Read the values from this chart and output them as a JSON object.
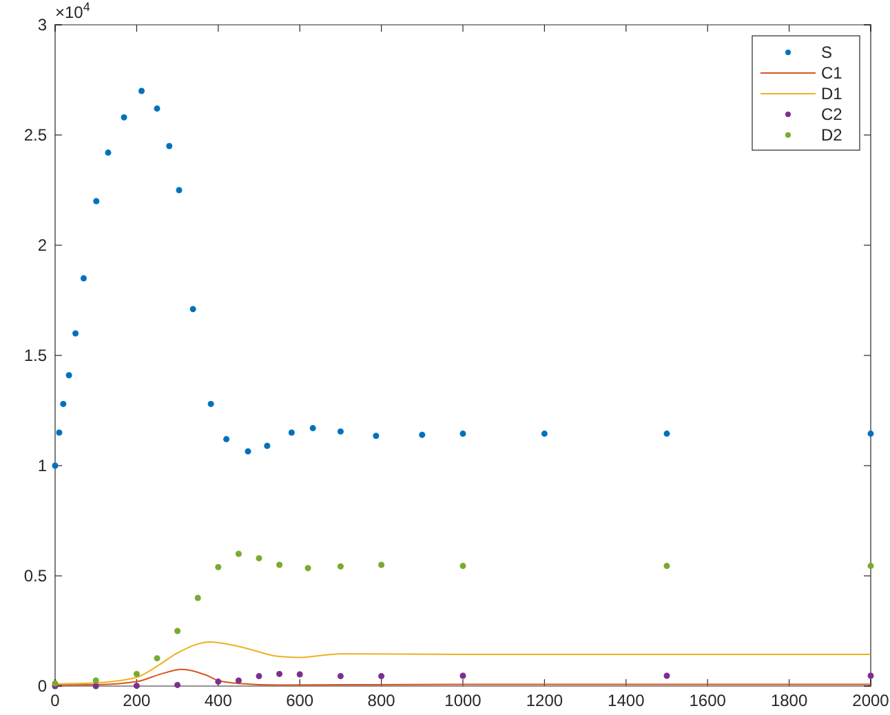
{
  "chart_data": {
    "type": "scatter",
    "xlim": [
      0,
      2000
    ],
    "xticks": [
      0,
      200,
      400,
      600,
      800,
      1000,
      1200,
      1400,
      1600,
      1800,
      2000
    ],
    "ylim": [
      0,
      3
    ],
    "yticks": [
      0,
      0.5,
      1,
      1.5,
      2,
      2.5,
      3
    ],
    "annotations": [
      "×10$^{4}$"
    ],
    "grid": false,
    "legend": "top right",
    "series": [
      {
        "name": "S",
        "marker": "circle",
        "color": "#0072bd",
        "x": [
          0,
          10,
          20,
          34,
          50,
          70,
          101,
          130,
          169,
          212,
          250,
          280,
          304,
          338,
          382,
          420,
          473,
          520,
          580,
          632,
          700,
          787,
          900,
          1000,
          1200,
          1500,
          2000
        ],
        "values": [
          1.0,
          1.15,
          1.28,
          1.41,
          1.6,
          1.85,
          2.2,
          2.42,
          2.58,
          2.7,
          2.62,
          2.45,
          2.25,
          1.71,
          1.28,
          1.12,
          1.065,
          1.09,
          1.15,
          1.17,
          1.155,
          1.135,
          1.14,
          1.145,
          1.145,
          1.145,
          1.145
        ]
      },
      {
        "name": "C1",
        "type": "line",
        "line_style": "solid",
        "color": "#d95319",
        "x": [
          0,
          100,
          200,
          260,
          310,
          370,
          400,
          450,
          550,
          1000,
          2000
        ],
        "values": [
          0.005,
          0.006,
          0.02,
          0.055,
          0.076,
          0.05,
          0.025,
          0.012,
          0.005,
          0.008,
          0.008
        ]
      },
      {
        "name": "D1",
        "type": "line",
        "line_style": "solid",
        "color": "#edb120",
        "x": [
          0,
          100,
          200,
          250,
          300,
          380,
          450,
          550,
          600,
          700,
          1000,
          2000
        ],
        "values": [
          0.01,
          0.015,
          0.04,
          0.09,
          0.15,
          0.2,
          0.18,
          0.134,
          0.13,
          0.146,
          0.144,
          0.144
        ]
      },
      {
        "name": "C2",
        "marker": "circle",
        "color": "#7e2f8e",
        "x": [
          0,
          100,
          200,
          300,
          400,
          450,
          500,
          550,
          600,
          700,
          800,
          1000,
          1500,
          2000
        ],
        "values": [
          0,
          0,
          0.001,
          0.005,
          0.02,
          0.025,
          0.045,
          0.055,
          0.053,
          0.045,
          0.045,
          0.047,
          0.047,
          0.047
        ]
      },
      {
        "name": "D2",
        "marker": "circle",
        "color": "#77ac30",
        "x": [
          0,
          100,
          200,
          250,
          300,
          350,
          400,
          450,
          500,
          550,
          620,
          700,
          800,
          1000,
          1500,
          2000
        ],
        "values": [
          0.012,
          0.025,
          0.055,
          0.126,
          0.25,
          0.4,
          0.54,
          0.6,
          0.58,
          0.55,
          0.535,
          0.543,
          0.55,
          0.545,
          0.545,
          0.545
        ]
      }
    ]
  }
}
